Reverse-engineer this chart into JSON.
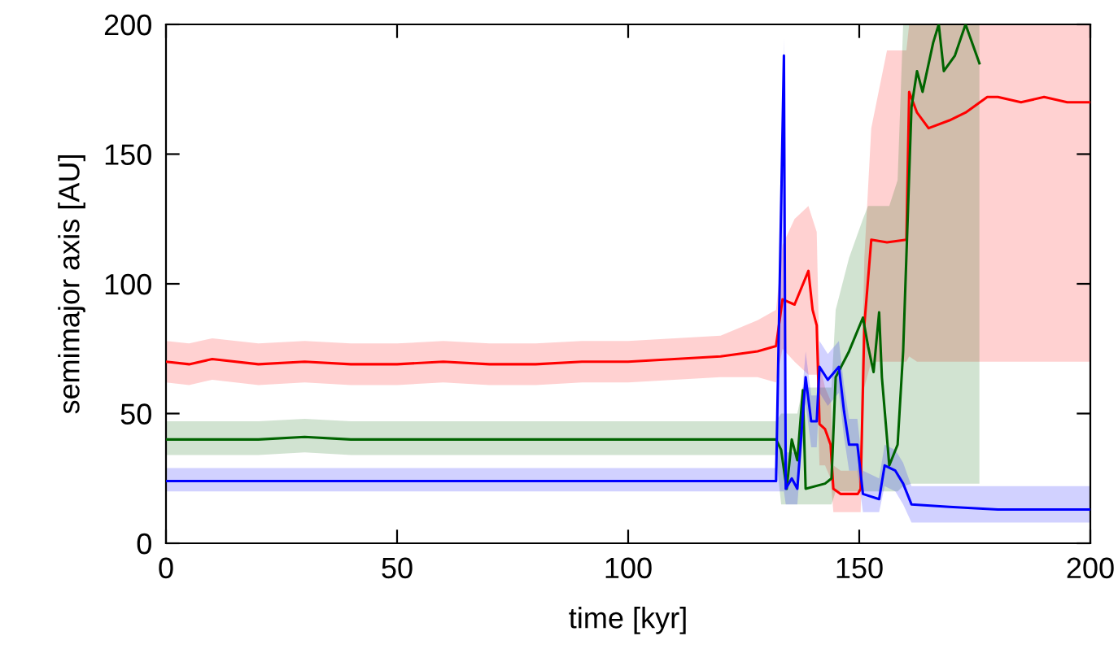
{
  "chart_data": {
    "type": "line",
    "xlabel": "time [kyr]",
    "ylabel": "semimajor axis [AU]",
    "xlim": [
      0,
      200
    ],
    "ylim": [
      0,
      200
    ],
    "xticks": [
      0,
      50,
      100,
      150,
      200
    ],
    "yticks": [
      0,
      50,
      100,
      150,
      200
    ],
    "grid": false,
    "line_style": "solid",
    "marker": "none",
    "series": [
      {
        "color": "#ff0000",
        "x": [
          0,
          5,
          10,
          20,
          30,
          40,
          50,
          60,
          70,
          80,
          90,
          100,
          110,
          120,
          128,
          132,
          133.4,
          136,
          139,
          139.9,
          140.8,
          141.4,
          142.6,
          143.8,
          144.4,
          146,
          149.7,
          150.3,
          151.1,
          152.6,
          156,
          160.2,
          160.8,
          162.5,
          165,
          169.5,
          173,
          177.7,
          180,
          185,
          190,
          195,
          200
        ],
        "values": [
          70,
          69,
          71,
          69,
          70,
          69,
          69,
          70,
          69,
          69,
          70,
          70,
          71,
          72,
          74,
          76,
          94,
          92,
          105,
          90,
          84,
          46,
          44,
          38,
          21,
          19,
          19,
          21,
          84,
          117,
          116,
          117,
          174,
          166,
          160,
          163,
          166,
          172,
          172,
          170,
          172,
          170,
          170
        ],
        "lower": [
          62,
          61,
          63,
          61,
          62,
          61,
          61,
          62,
          61,
          61,
          62,
          62,
          63,
          64,
          64,
          62,
          75,
          70,
          65,
          65,
          65,
          30,
          30,
          25,
          12,
          12,
          12,
          12,
          60,
          70,
          70,
          70,
          72,
          70,
          70,
          70,
          70,
          70,
          70,
          70,
          70,
          70,
          70
        ],
        "upper": [
          78,
          77,
          79,
          77,
          78,
          77,
          77,
          78,
          77,
          77,
          78,
          78,
          79,
          80,
          86,
          90,
          115,
          125,
          130,
          125,
          120,
          70,
          60,
          55,
          30,
          28,
          28,
          40,
          110,
          160,
          190,
          190,
          200,
          200,
          200,
          200,
          200,
          200,
          200,
          200,
          200,
          200,
          200
        ]
      },
      {
        "color": "#006400",
        "x": [
          0,
          10,
          20,
          30,
          40,
          50,
          60,
          70,
          80,
          90,
          100,
          110,
          120,
          132,
          133.1,
          134.3,
          135.4,
          136.6,
          137.8,
          138.4,
          142.6,
          144,
          144.9,
          147.8,
          150.8,
          151.9,
          153.1,
          154.3,
          154.9,
          156.5,
          158.3,
          159.5,
          161.3,
          162.5,
          163.7,
          166,
          167.2,
          168.3,
          170.7,
          173,
          176
        ],
        "values": [
          40,
          40,
          40,
          41,
          40,
          40,
          40,
          40,
          40,
          40,
          40,
          40,
          40,
          40,
          36,
          21,
          40,
          32,
          59,
          21,
          23,
          25,
          64,
          74,
          87,
          76,
          66,
          89,
          64,
          30,
          38,
          74,
          168,
          182,
          174,
          193,
          200,
          182,
          188,
          200,
          185
        ],
        "lower": [
          34,
          34,
          34,
          35,
          34,
          34,
          34,
          34,
          34,
          34,
          34,
          34,
          34,
          34,
          15,
          15,
          15,
          15,
          15,
          15,
          15,
          15,
          20,
          20,
          20,
          20,
          20,
          20,
          20,
          20,
          20,
          22,
          23,
          23,
          23,
          23,
          23,
          23,
          23,
          23,
          23
        ],
        "upper": [
          47,
          47,
          47,
          48,
          47,
          47,
          47,
          47,
          47,
          47,
          47,
          47,
          47,
          47,
          50,
          50,
          50,
          50,
          60,
          60,
          60,
          60,
          90,
          110,
          125,
          130,
          130,
          130,
          130,
          130,
          140,
          200,
          200,
          200,
          200,
          200,
          200,
          200,
          200,
          200,
          200
        ]
      },
      {
        "color": "#0000ff",
        "x": [
          0,
          10,
          20,
          30,
          40,
          50,
          60,
          70,
          80,
          90,
          100,
          110,
          120,
          132,
          133.7,
          134.1,
          135.4,
          136.6,
          138.4,
          139.6,
          140.8,
          141.4,
          143.2,
          145.6,
          146.7,
          147.8,
          149.6,
          150.8,
          154.3,
          155.5,
          157.8,
          159.5,
          161.3,
          169.5,
          180,
          200
        ],
        "values": [
          24,
          24,
          24,
          24,
          24,
          24,
          24,
          24,
          24,
          24,
          24,
          24,
          24,
          24,
          188,
          21,
          25,
          21,
          64,
          47,
          47,
          68,
          63,
          68,
          51,
          38,
          38,
          19,
          17,
          30,
          28,
          23,
          15,
          14,
          13,
          13
        ],
        "lower": [
          20,
          20,
          20,
          20,
          20,
          20,
          20,
          20,
          20,
          20,
          20,
          20,
          20,
          20,
          20,
          15,
          15,
          15,
          54,
          37,
          37,
          58,
          53,
          58,
          41,
          28,
          28,
          12,
          12,
          22,
          20,
          15,
          8,
          8,
          8,
          8
        ],
        "upper": [
          29,
          29,
          29,
          29,
          29,
          29,
          29,
          29,
          29,
          29,
          29,
          29,
          29,
          29,
          195,
          35,
          35,
          35,
          74,
          57,
          57,
          78,
          73,
          78,
          61,
          48,
          48,
          28,
          25,
          38,
          36,
          31,
          22,
          22,
          22,
          22
        ]
      }
    ]
  }
}
